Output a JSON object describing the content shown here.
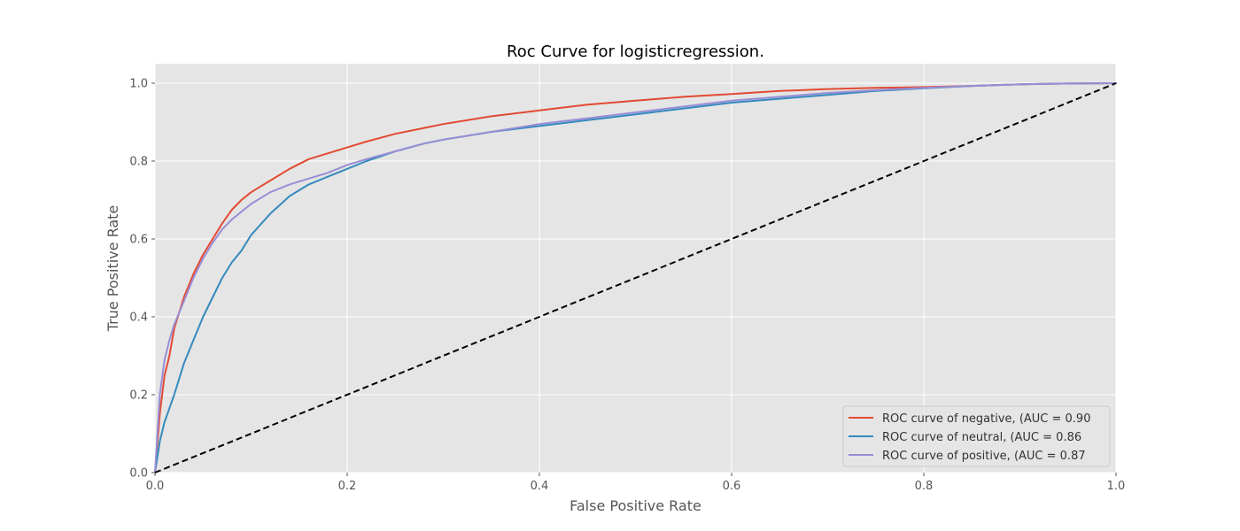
{
  "chart_data": {
    "type": "line",
    "title": "Roc Curve for logisticregression.",
    "xlabel": "False Positive Rate",
    "ylabel": "True Positive Rate",
    "xlim": [
      0.0,
      1.0
    ],
    "ylim": [
      0.0,
      1.05
    ],
    "xticks": [
      0.0,
      0.2,
      0.4,
      0.6,
      0.8,
      1.0
    ],
    "yticks": [
      0.0,
      0.2,
      0.4,
      0.6,
      0.8,
      1.0
    ],
    "xtick_labels": [
      "0.0",
      "0.2",
      "0.4",
      "0.6",
      "0.8",
      "1.0"
    ],
    "ytick_labels": [
      "0.0",
      "0.2",
      "0.4",
      "0.6",
      "0.8",
      "1.0"
    ],
    "grid": true,
    "legend_position": "lower-right",
    "series": [
      {
        "name": "ROC curve of negative, (AUC = 0.90",
        "color": "#E24A33",
        "x": [
          0,
          0.005,
          0.01,
          0.015,
          0.02,
          0.03,
          0.04,
          0.05,
          0.06,
          0.07,
          0.08,
          0.09,
          0.1,
          0.12,
          0.14,
          0.16,
          0.18,
          0.2,
          0.22,
          0.25,
          0.28,
          0.3,
          0.35,
          0.4,
          0.45,
          0.5,
          0.55,
          0.6,
          0.65,
          0.7,
          0.75,
          0.8,
          0.85,
          0.9,
          0.95,
          1.0
        ],
        "y": [
          0,
          0.15,
          0.25,
          0.3,
          0.37,
          0.45,
          0.51,
          0.56,
          0.6,
          0.64,
          0.675,
          0.7,
          0.72,
          0.75,
          0.78,
          0.805,
          0.82,
          0.835,
          0.85,
          0.87,
          0.885,
          0.895,
          0.915,
          0.93,
          0.945,
          0.955,
          0.965,
          0.972,
          0.98,
          0.985,
          0.988,
          0.99,
          0.993,
          0.997,
          0.999,
          1.0
        ]
      },
      {
        "name": "ROC curve of neutral, (AUC = 0.86",
        "color": "#348ABD",
        "x": [
          0,
          0.005,
          0.01,
          0.02,
          0.03,
          0.04,
          0.05,
          0.06,
          0.07,
          0.08,
          0.09,
          0.1,
          0.12,
          0.14,
          0.16,
          0.18,
          0.2,
          0.22,
          0.25,
          0.28,
          0.3,
          0.35,
          0.4,
          0.45,
          0.5,
          0.55,
          0.6,
          0.65,
          0.7,
          0.75,
          0.8,
          0.85,
          0.9,
          0.95,
          1.0
        ],
        "y": [
          0,
          0.08,
          0.13,
          0.2,
          0.28,
          0.34,
          0.4,
          0.45,
          0.5,
          0.54,
          0.57,
          0.61,
          0.665,
          0.71,
          0.74,
          0.76,
          0.78,
          0.8,
          0.825,
          0.845,
          0.855,
          0.875,
          0.89,
          0.905,
          0.92,
          0.935,
          0.95,
          0.96,
          0.97,
          0.98,
          0.987,
          0.993,
          0.997,
          0.999,
          1.0
        ]
      },
      {
        "name": "ROC curve of positive, (AUC = 0.87",
        "color": "#988ED5",
        "x": [
          0,
          0.005,
          0.01,
          0.015,
          0.02,
          0.03,
          0.04,
          0.05,
          0.06,
          0.07,
          0.08,
          0.09,
          0.1,
          0.12,
          0.14,
          0.16,
          0.18,
          0.2,
          0.22,
          0.25,
          0.28,
          0.3,
          0.35,
          0.4,
          0.45,
          0.5,
          0.55,
          0.6,
          0.65,
          0.7,
          0.75,
          0.8,
          0.85,
          0.9,
          0.95,
          1.0
        ],
        "y": [
          0,
          0.2,
          0.29,
          0.34,
          0.38,
          0.44,
          0.5,
          0.55,
          0.59,
          0.625,
          0.65,
          0.67,
          0.69,
          0.72,
          0.74,
          0.755,
          0.77,
          0.79,
          0.805,
          0.825,
          0.845,
          0.855,
          0.875,
          0.895,
          0.91,
          0.925,
          0.94,
          0.955,
          0.965,
          0.975,
          0.982,
          0.988,
          0.993,
          0.997,
          0.999,
          1.0
        ]
      }
    ],
    "reference_line": {
      "color": "#000000",
      "style": "dashed",
      "x": [
        0,
        1
      ],
      "y": [
        0,
        1
      ]
    }
  }
}
